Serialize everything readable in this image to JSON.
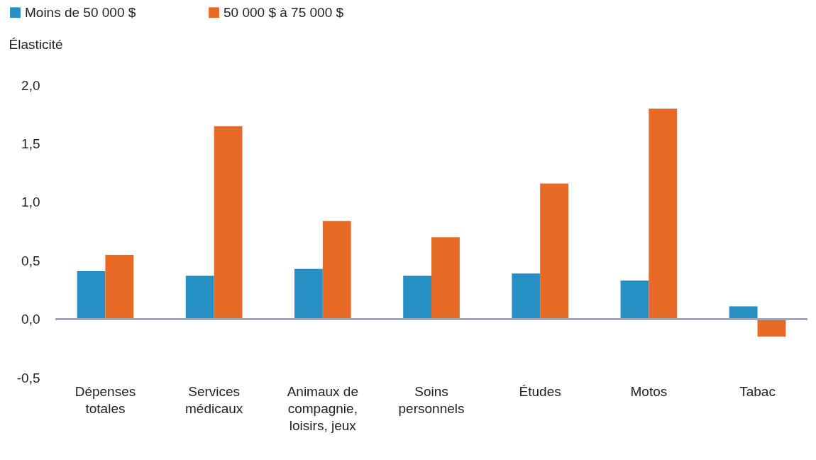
{
  "chart_data": {
    "type": "bar",
    "ylabel": "Élasticité",
    "categories": [
      "Dépenses totales",
      "Services médicaux",
      "Animaux de compagnie, loisirs, jeux",
      "Soins personnels",
      "Études",
      "Motos",
      "Tabac"
    ],
    "series": [
      {
        "name": "Moins de 50 000 $",
        "color": "#2690c4",
        "values": [
          0.41,
          0.37,
          0.43,
          0.37,
          0.39,
          0.33,
          0.11
        ]
      },
      {
        "name": "50 000 $ à 75 000 $",
        "color": "#e66a25",
        "values": [
          0.55,
          1.65,
          0.84,
          0.7,
          1.16,
          1.8,
          -0.15
        ]
      }
    ],
    "ylim": [
      -0.5,
      2.0
    ],
    "yticks": [
      {
        "value": -0.5,
        "label": "-0,5"
      },
      {
        "value": 0,
        "label": "0,0"
      },
      {
        "value": 0.5,
        "label": "0,5"
      },
      {
        "value": 1,
        "label": "1,0"
      },
      {
        "value": 1.5,
        "label": "1,5"
      },
      {
        "value": 2,
        "label": "2,0"
      }
    ],
    "ref_lines": [
      {
        "axis": "y",
        "value": 0,
        "color": "#a3a7b3"
      }
    ],
    "grid": false,
    "legend": "top left"
  }
}
